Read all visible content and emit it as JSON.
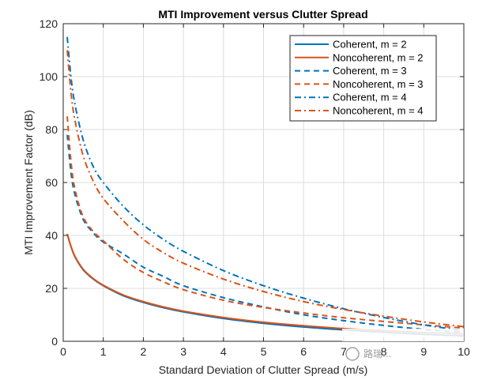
{
  "colors": {
    "coherent": "#0072BD",
    "noncoherent": "#D95319",
    "grid": "#dcdcdc",
    "axis": "#262626"
  },
  "chart_data": {
    "type": "line",
    "title": "MTI Improvement versus Clutter Spread",
    "xlabel": "Standard Deviation of Clutter Spread (m/s)",
    "ylabel": "MTI Improvement Factor (dB)",
    "xlim": [
      0,
      10
    ],
    "ylim": [
      0,
      120
    ],
    "xticks": [
      "0",
      "1",
      "2",
      "3",
      "4",
      "5",
      "6",
      "7",
      "8",
      "9",
      "10"
    ],
    "yticks": [
      "0",
      "20",
      "40",
      "60",
      "80",
      "100",
      "120"
    ],
    "grid": true,
    "legend_location": "top-right",
    "x": [
      0.1,
      0.2,
      0.3,
      0.5,
      0.75,
      1,
      1.5,
      2,
      2.5,
      3,
      4,
      5,
      6,
      7,
      8,
      9,
      10
    ],
    "series": [
      {
        "name": "Coherent, m = 2",
        "style": "solid",
        "color": "coherent",
        "values": [
          40.5,
          35.5,
          31.7,
          27.0,
          23.5,
          21.0,
          17.2,
          14.7,
          12.7,
          11.1,
          8.6,
          6.8,
          5.4,
          4.3,
          3.4,
          2.6,
          2.0
        ]
      },
      {
        "name": "Noncoherent, m = 2",
        "style": "solid",
        "color": "noncoherent",
        "values": [
          40.6,
          35.6,
          31.9,
          27.2,
          23.7,
          21.2,
          17.5,
          15.0,
          13.0,
          11.4,
          9.0,
          7.2,
          5.9,
          4.8,
          4.0,
          3.3,
          2.8
        ]
      },
      {
        "name": "Coherent, m = 3",
        "style": "dashed",
        "color": "coherent",
        "values": [
          78.0,
          63.0,
          55.0,
          46.0,
          41.0,
          37.5,
          33.0,
          28.0,
          24.5,
          21.0,
          16.5,
          13.0,
          10.0,
          7.8,
          6.0,
          4.5,
          3.3
        ]
      },
      {
        "name": "Noncoherent, m = 3",
        "style": "dashed",
        "color": "noncoherent",
        "values": [
          85.0,
          67.0,
          57.0,
          47.0,
          41.5,
          38.0,
          31.0,
          26.0,
          22.5,
          19.5,
          15.5,
          12.8,
          10.7,
          8.9,
          7.5,
          6.2,
          5.0
        ]
      },
      {
        "name": "Coherent, m = 4",
        "style": "dashdot",
        "color": "coherent",
        "values": [
          115.0,
          99.0,
          89.0,
          76.0,
          66.0,
          60.0,
          51.0,
          44.0,
          38.5,
          34.0,
          26.7,
          21.0,
          16.3,
          12.3,
          9.0,
          6.2,
          4.0
        ]
      },
      {
        "name": "Noncoherent, m = 4",
        "style": "dashdot",
        "color": "noncoherent",
        "values": [
          110.0,
          93.0,
          83.0,
          70.0,
          60.5,
          54.0,
          45.5,
          38.5,
          33.5,
          29.5,
          23.5,
          18.8,
          15.0,
          12.0,
          9.5,
          7.3,
          5.5
        ]
      }
    ]
  },
  "watermark": {
    "text": "路瑞..."
  }
}
